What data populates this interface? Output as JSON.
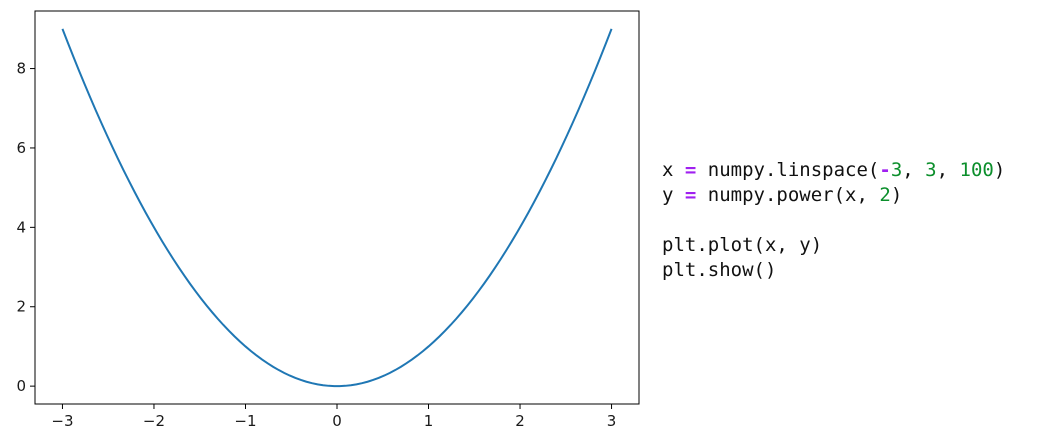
{
  "chart_data": {
    "type": "line",
    "title": "",
    "xlabel": "",
    "ylabel": "",
    "xlim": [
      -3.3,
      3.3
    ],
    "ylim": [
      -0.45,
      9.45
    ],
    "x_ticks": [
      -3,
      -2,
      -1,
      0,
      1,
      2,
      3
    ],
    "x_tick_labels": [
      "−3",
      "−2",
      "−1",
      "0",
      "1",
      "2",
      "3"
    ],
    "y_ticks": [
      0,
      2,
      4,
      6,
      8
    ],
    "y_tick_labels": [
      "0",
      "2",
      "4",
      "6",
      "8"
    ],
    "grid": false,
    "series": [
      {
        "color": "#1f77b4",
        "function": "y = x^2",
        "x_start": -3,
        "x_end": 3,
        "num_points": 100
      }
    ]
  },
  "code": {
    "lines": [
      [
        {
          "t": "x "
        },
        {
          "t": "=",
          "k": "op"
        },
        {
          "t": " numpy.linspace("
        },
        {
          "t": "-",
          "k": "op"
        },
        {
          "t": "3",
          "k": "num"
        },
        {
          "t": ", "
        },
        {
          "t": "3",
          "k": "num"
        },
        {
          "t": ", "
        },
        {
          "t": "100",
          "k": "num"
        },
        {
          "t": ")"
        }
      ],
      [
        {
          "t": "y "
        },
        {
          "t": "=",
          "k": "op"
        },
        {
          "t": " numpy.power(x, "
        },
        {
          "t": "2",
          "k": "num"
        },
        {
          "t": ")"
        }
      ],
      [],
      [
        {
          "t": "plt.plot(x, y)"
        }
      ],
      [
        {
          "t": "plt.show()"
        }
      ]
    ]
  }
}
